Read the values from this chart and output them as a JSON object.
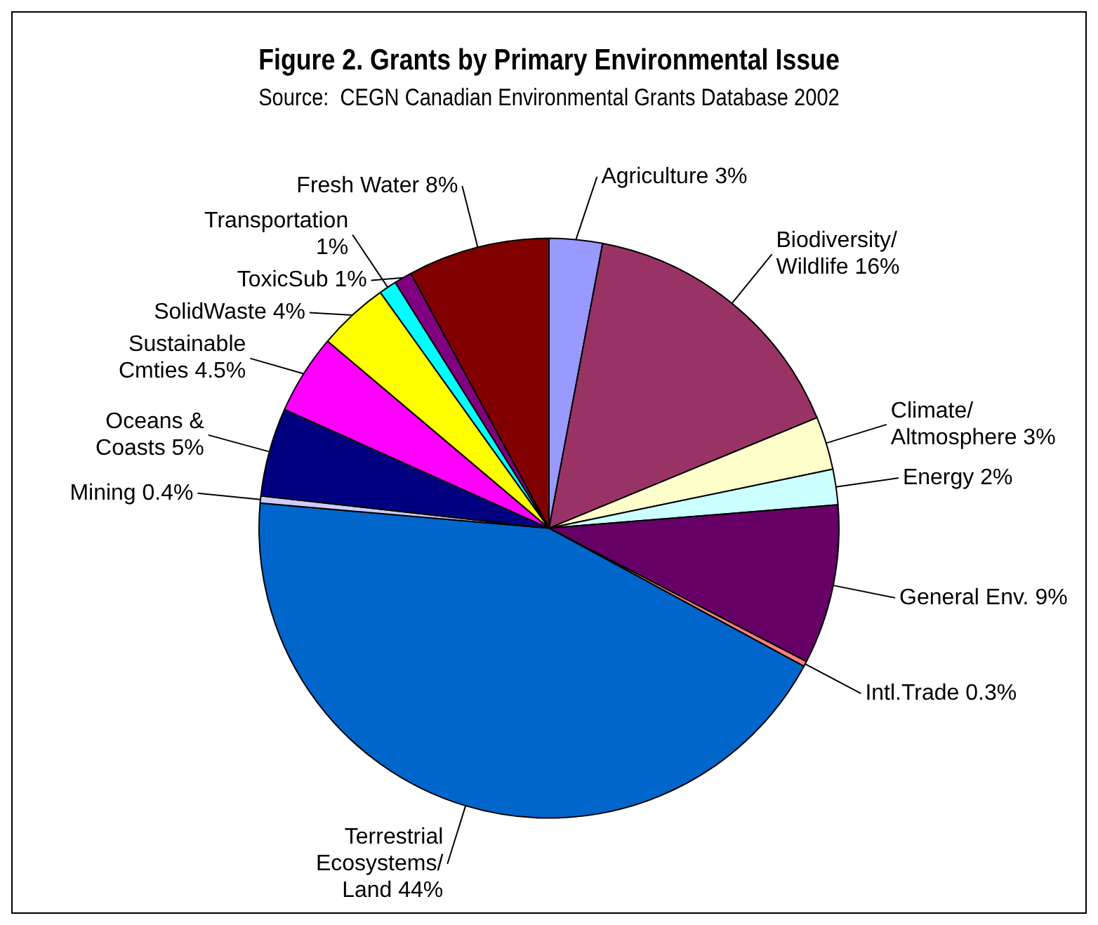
{
  "chart_data": {
    "type": "pie",
    "title": "Figure 2. Grants by Primary Environmental Issue",
    "subtitle": "Source:  CEGN Canadian Environmental Grants Database 2002",
    "categories": [
      "Agriculture",
      "Biodiversity/ Wildlife",
      "Climate/ Altmosphere",
      "Energy",
      "General Env.",
      "Intl.Trade",
      "Terrestrial Ecosystems/ Land",
      "Mining",
      "Oceans & Coasts",
      "Sustainable Cmties",
      "SolidWaste",
      "Transportation",
      "ToxicSub",
      "Fresh Water"
    ],
    "values": [
      3,
      16,
      3,
      2,
      9,
      0.3,
      44,
      0.4,
      5,
      4.5,
      4,
      1,
      1,
      8
    ],
    "value_labels": [
      "3%",
      "16%",
      "3%",
      "2%",
      "9%",
      "0.3%",
      "44%",
      "0.4%",
      "5%",
      "4.5%",
      "4%",
      "1%",
      "1%",
      "8%"
    ],
    "colors": [
      "#9999ff",
      "#993366",
      "#ffffcc",
      "#ccffff",
      "#660066",
      "#ff8080",
      "#0066cc",
      "#ccccff",
      "#000080",
      "#ff00ff",
      "#ffff00",
      "#00ffff",
      "#800080",
      "#800000"
    ],
    "legend": false
  }
}
